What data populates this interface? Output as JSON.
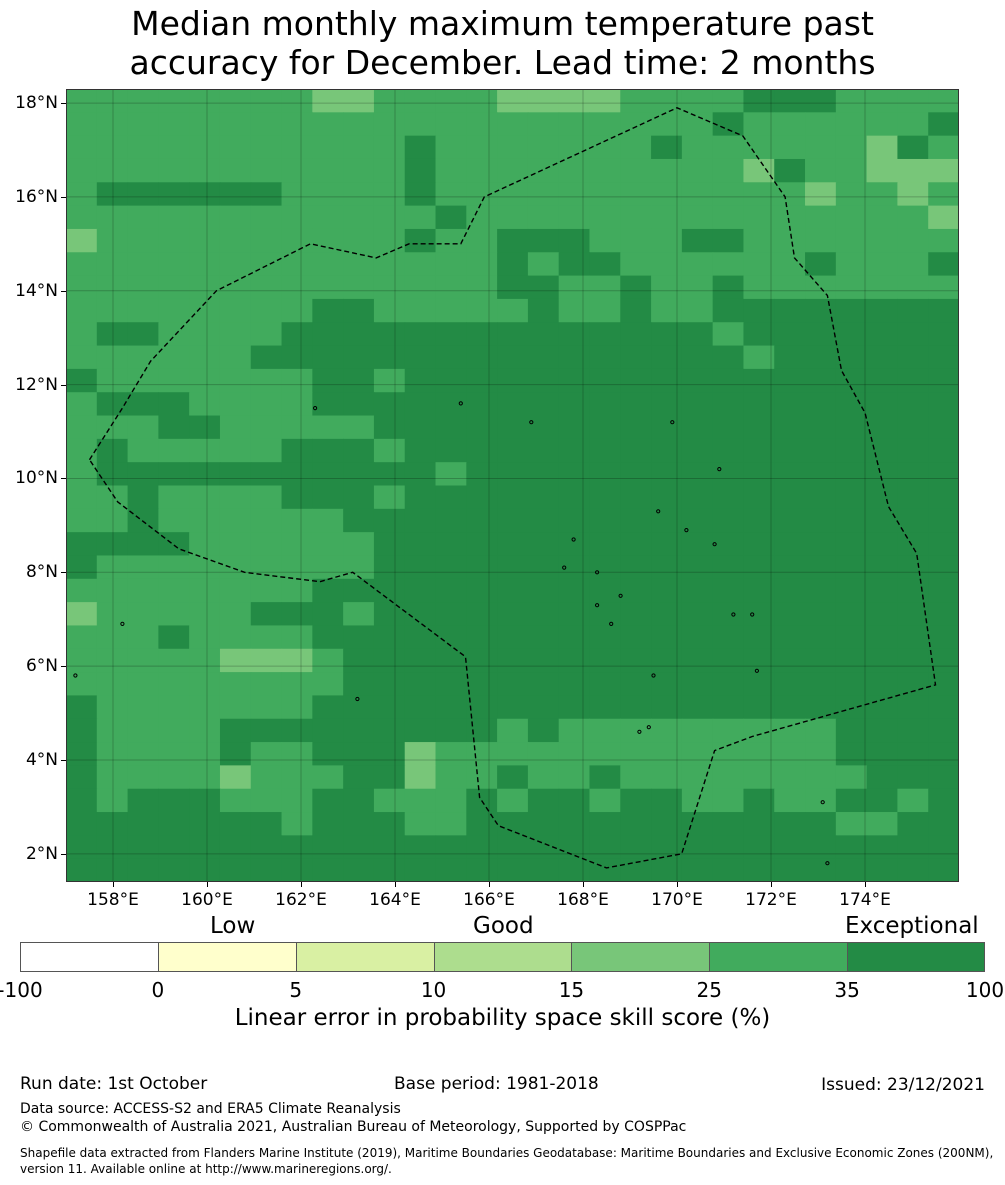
{
  "title_line1": "Median monthly maximum temperature past",
  "title_line2": "accuracy for December. Lead time: 2 months",
  "map": {
    "lon_range": [
      157.0,
      176.0
    ],
    "lat_range": [
      1.4,
      18.3
    ],
    "grid_step_deg": 0.83,
    "lat_ticks": [
      {
        "value": 18,
        "label": "18°N"
      },
      {
        "value": 16,
        "label": "16°N"
      },
      {
        "value": 14,
        "label": "14°N"
      },
      {
        "value": 12,
        "label": "12°N"
      },
      {
        "value": 10,
        "label": "10°N"
      },
      {
        "value": 8,
        "label": "8°N"
      },
      {
        "value": 6,
        "label": "6°N"
      },
      {
        "value": 4,
        "label": "4°N"
      },
      {
        "value": 2,
        "label": "2°N"
      }
    ],
    "lon_ticks": [
      {
        "value": 158,
        "label": "158°E"
      },
      {
        "value": 160,
        "label": "160°E"
      },
      {
        "value": 162,
        "label": "162°E"
      },
      {
        "value": 164,
        "label": "164°E"
      },
      {
        "value": 166,
        "label": "166°E"
      },
      {
        "value": 168,
        "label": "168°E"
      },
      {
        "value": 170,
        "label": "170°E"
      },
      {
        "value": 172,
        "label": "172°E"
      },
      {
        "value": 174,
        "label": "174°E"
      }
    ],
    "eez_boundary": [
      [
        157.5,
        10.4
      ],
      [
        158.2,
        11.5
      ],
      [
        158.8,
        12.5
      ],
      [
        160.2,
        14.0
      ],
      [
        162.2,
        15.0
      ],
      [
        163.6,
        14.7
      ],
      [
        164.3,
        15.0
      ],
      [
        165.4,
        15.0
      ],
      [
        165.9,
        16.0
      ],
      [
        170.0,
        17.9
      ],
      [
        171.4,
        17.3
      ],
      [
        172.3,
        16.0
      ],
      [
        172.5,
        14.7
      ],
      [
        173.2,
        13.9
      ],
      [
        173.5,
        12.3
      ],
      [
        174.0,
        11.4
      ],
      [
        174.5,
        9.4
      ],
      [
        175.1,
        8.4
      ],
      [
        175.5,
        5.6
      ],
      [
        171.6,
        4.5
      ],
      [
        170.8,
        4.2
      ],
      [
        170.1,
        2.0
      ],
      [
        168.5,
        1.7
      ],
      [
        166.2,
        2.6
      ],
      [
        165.8,
        3.2
      ],
      [
        165.5,
        6.2
      ],
      [
        163.1,
        8.0
      ],
      [
        162.4,
        7.8
      ],
      [
        160.8,
        8.0
      ],
      [
        159.4,
        8.5
      ],
      [
        158.1,
        9.5
      ],
      [
        157.5,
        10.4
      ]
    ],
    "islands": [
      [
        158.2,
        6.9
      ],
      [
        166.9,
        11.2
      ],
      [
        168.6,
        6.9
      ],
      [
        169.6,
        9.3
      ],
      [
        168.8,
        7.5
      ],
      [
        171.2,
        7.1
      ],
      [
        171.6,
        7.1
      ],
      [
        167.8,
        8.7
      ],
      [
        171.7,
        5.9
      ],
      [
        169.5,
        5.8
      ],
      [
        169.2,
        4.6
      ],
      [
        173.1,
        3.1
      ],
      [
        173.2,
        1.8
      ],
      [
        163.2,
        5.3
      ],
      [
        162.3,
        11.5
      ],
      [
        165.4,
        11.6
      ],
      [
        169.9,
        11.2
      ],
      [
        170.2,
        8.9
      ],
      [
        170.9,
        10.2
      ],
      [
        170.8,
        8.6
      ],
      [
        167.6,
        8.1
      ],
      [
        168.3,
        7.3
      ],
      [
        168.3,
        8.0
      ],
      [
        169.4,
        4.7
      ],
      [
        157.2,
        5.8
      ]
    ]
  },
  "colorbar": {
    "categories": [
      {
        "label": "Low"
      },
      {
        "label": "Good"
      },
      {
        "label": "Exceptional"
      }
    ],
    "bins": [
      {
        "from": "-100",
        "to": "0",
        "color": "#ffffff"
      },
      {
        "from": "0",
        "to": "5",
        "color": "#ffffcc"
      },
      {
        "from": "5",
        "to": "10",
        "color": "#d9f0a3"
      },
      {
        "from": "10",
        "to": "15",
        "color": "#addd8e"
      },
      {
        "from": "15",
        "to": "25",
        "color": "#78c679"
      },
      {
        "from": "25",
        "to": "35",
        "color": "#41ab5d"
      },
      {
        "from": "35",
        "to": "100",
        "color": "#238b45"
      }
    ],
    "ticks": [
      "-100",
      "0",
      "5",
      "10",
      "15",
      "25",
      "35",
      "100"
    ],
    "label": "Linear error in probability space skill score (%)"
  },
  "footer": {
    "run_date": "Run date: 1st October",
    "base_period": "Base period: 1981-2018",
    "issued": "Issued: 23/12/2021",
    "data_source": "Data source: ACCESS-S2 and ERA5 Climate Reanalysis",
    "copyright": "© Commonwealth of Australia 2021, Australian Bureau of Meteorology, Supported by COSPPac",
    "shapefile_line1": "Shapefile data extracted from Flanders Marine Institute (2019), Maritime Boundaries Geodatabase: Maritime Boundaries and Exclusive Economic Zones (200NM),",
    "shapefile_line2": "version 11. Available online at http://www.marineregions.org/."
  }
}
